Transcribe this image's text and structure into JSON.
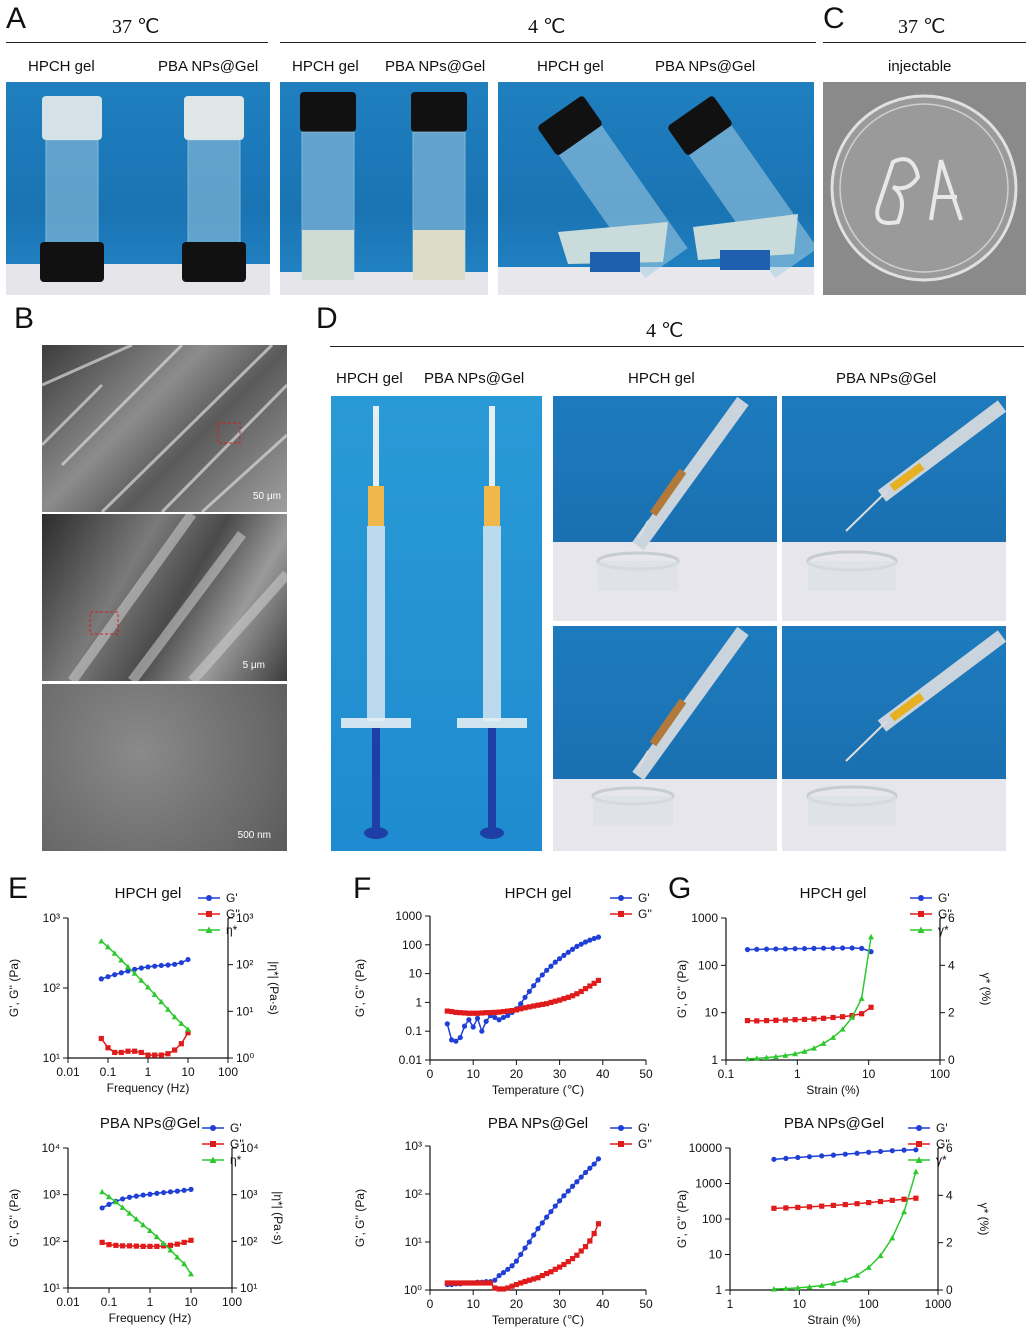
{
  "panels": {
    "A": {
      "letter": "A",
      "temp_left": "37 ℃",
      "temp_right": "4 ℃",
      "labels": [
        "HPCH gel",
        "PBA NPs@Gel",
        "HPCH gel",
        "PBA NPs@Gel",
        "HPCH gel",
        "PBA NPs@Gel"
      ]
    },
    "B": {
      "letter": "B",
      "scale_bars": [
        "50 μm",
        "5 μm",
        "500 nm"
      ]
    },
    "C": {
      "letter": "C",
      "temp": "37 ℃",
      "label": "injectable"
    },
    "D": {
      "letter": "D",
      "temp": "4 ℃",
      "labels": [
        "HPCH gel",
        "PBA NPs@Gel",
        "HPCH gel",
        "PBA NPs@Gel"
      ]
    },
    "E": {
      "letter": "E"
    },
    "F": {
      "letter": "F"
    },
    "G": {
      "letter": "G"
    }
  },
  "colors": {
    "blue_series": "#1f3fd6",
    "red_series": "#e01b1b",
    "green_series": "#2dc82d",
    "photo_blue": "#1f7fbf"
  },
  "chart_data": [
    {
      "id": "E-top",
      "type": "line",
      "title": "HPCH gel",
      "xlabel": "Frequency (Hz)",
      "ylabel": "G', G'' (Pa)",
      "y2label": "|η*| (Pa·s)",
      "xscale": "log",
      "xlim": [
        0.01,
        100
      ],
      "xticks": [
        "0.01",
        "0.1",
        "1",
        "10",
        "100"
      ],
      "yscale": "log",
      "ylim": [
        10,
        1000
      ],
      "yticks": [
        "10¹",
        "10²",
        "10³"
      ],
      "y2lim": [
        1,
        1000
      ],
      "y2ticks": [
        "10⁰",
        "10¹",
        "10²",
        "10³"
      ],
      "legend": "top-right",
      "series": [
        {
          "name": "G'",
          "axis": "y",
          "color": "#1f3fd6",
          "marker": "circle",
          "x": [
            0.068,
            0.1,
            0.147,
            0.215,
            0.316,
            0.464,
            0.681,
            1.0,
            1.47,
            2.15,
            3.16,
            4.64,
            6.81,
            10.0
          ],
          "y": [
            135,
            145,
            155,
            165,
            175,
            185,
            193,
            200,
            205,
            210,
            213,
            218,
            230,
            255
          ]
        },
        {
          "name": "G''",
          "axis": "y",
          "color": "#e01b1b",
          "marker": "square",
          "x": [
            0.068,
            0.1,
            0.147,
            0.215,
            0.316,
            0.464,
            0.681,
            1.0,
            1.47,
            2.15,
            3.16,
            4.64,
            6.81,
            10.0
          ],
          "y": [
            19,
            14,
            12,
            12,
            12.5,
            12.5,
            12,
            11,
            11,
            11,
            11.5,
            13,
            16,
            23
          ]
        },
        {
          "name": "η*",
          "axis": "y2",
          "color": "#2dc82d",
          "marker": "triangle",
          "x": [
            0.068,
            0.1,
            0.147,
            0.215,
            0.316,
            0.464,
            0.681,
            1.0,
            1.47,
            2.15,
            3.16,
            4.64,
            6.81,
            10.0
          ],
          "y": [
            320,
            240,
            175,
            125,
            90,
            65,
            46,
            33,
            23,
            16,
            11,
            7.6,
            5.5,
            4.1
          ]
        }
      ]
    },
    {
      "id": "E-bottom",
      "type": "line",
      "title": "PBA NPs@Gel",
      "xlabel": "Frequency (Hz)",
      "ylabel": "G', G'' (Pa)",
      "y2label": "|η*| (Pa·s)",
      "xscale": "log",
      "xlim": [
        0.01,
        100
      ],
      "xticks": [
        "0.01",
        "0.1",
        "1",
        "10",
        "100"
      ],
      "yscale": "log",
      "ylim": [
        10,
        10000
      ],
      "yticks": [
        "10¹",
        "10²",
        "10³",
        "10⁴"
      ],
      "y2lim": [
        10,
        10000
      ],
      "y2ticks": [
        "10¹",
        "10²",
        "10³",
        "10⁴"
      ],
      "legend": "top-right",
      "series": [
        {
          "name": "G'",
          "axis": "y",
          "color": "#1f3fd6",
          "marker": "circle",
          "x": [
            0.068,
            0.1,
            0.147,
            0.215,
            0.316,
            0.464,
            0.681,
            1.0,
            1.47,
            2.15,
            3.16,
            4.64,
            6.81,
            10.0
          ],
          "y": [
            520,
            620,
            720,
            810,
            880,
            930,
            980,
            1020,
            1070,
            1110,
            1150,
            1190,
            1240,
            1300
          ]
        },
        {
          "name": "G''",
          "axis": "y",
          "color": "#e01b1b",
          "marker": "square",
          "x": [
            0.068,
            0.1,
            0.147,
            0.215,
            0.316,
            0.464,
            0.681,
            1.0,
            1.47,
            2.15,
            3.16,
            4.64,
            6.81,
            10.0
          ],
          "y": [
            95,
            85,
            82,
            80,
            80,
            79,
            78,
            78,
            78,
            80,
            82,
            87,
            95,
            105
          ]
        },
        {
          "name": "η*",
          "axis": "y2",
          "color": "#2dc82d",
          "marker": "triangle",
          "x": [
            0.068,
            0.1,
            0.147,
            0.215,
            0.316,
            0.464,
            0.681,
            1.0,
            1.47,
            2.15,
            3.16,
            4.64,
            6.81,
            10.0
          ],
          "y": [
            1150,
            900,
            700,
            530,
            400,
            300,
            225,
            170,
            125,
            90,
            65,
            46,
            33,
            20
          ]
        }
      ]
    },
    {
      "id": "F-top",
      "type": "line",
      "title": "HPCH gel",
      "xlabel": "Temperature (℃)",
      "ylabel": "G', G'' (Pa)",
      "xscale": "linear",
      "xlim": [
        0,
        50
      ],
      "xticks": [
        "0",
        "10",
        "20",
        "30",
        "40",
        "50"
      ],
      "yscale": "log",
      "ylim": [
        0.01,
        1000
      ],
      "yticks": [
        "0.01",
        "0.1",
        "1",
        "10",
        "100",
        "1000"
      ],
      "legend": "top-right",
      "series": [
        {
          "name": "G'",
          "axis": "y",
          "color": "#1f3fd6",
          "marker": "circle",
          "x": [
            4,
            5,
            6,
            7,
            8,
            9,
            10,
            11,
            12,
            13,
            14,
            15,
            16,
            17,
            18,
            19,
            20,
            21,
            22,
            23,
            24,
            25,
            26,
            27,
            28,
            29,
            30,
            31,
            32,
            33,
            34,
            35,
            36,
            37,
            38,
            39
          ],
          "y": [
            0.18,
            0.05,
            0.045,
            0.06,
            0.15,
            0.25,
            0.14,
            0.28,
            0.1,
            0.22,
            0.35,
            0.3,
            0.25,
            0.3,
            0.35,
            0.45,
            0.6,
            0.9,
            1.5,
            2.4,
            3.8,
            6,
            9,
            13,
            18,
            25,
            33,
            43,
            55,
            70,
            88,
            105,
            125,
            145,
            165,
            185
          ]
        },
        {
          "name": "G''",
          "axis": "y",
          "color": "#e01b1b",
          "marker": "square",
          "x": [
            4,
            5,
            6,
            7,
            8,
            9,
            10,
            11,
            12,
            13,
            14,
            15,
            16,
            17,
            18,
            19,
            20,
            21,
            22,
            23,
            24,
            25,
            26,
            27,
            28,
            29,
            30,
            31,
            32,
            33,
            34,
            35,
            36,
            37,
            38,
            39
          ],
          "y": [
            0.5,
            0.48,
            0.45,
            0.44,
            0.43,
            0.42,
            0.42,
            0.42,
            0.43,
            0.44,
            0.44,
            0.45,
            0.46,
            0.48,
            0.5,
            0.52,
            0.55,
            0.6,
            0.65,
            0.7,
            0.75,
            0.8,
            0.85,
            0.9,
            1.0,
            1.1,
            1.2,
            1.35,
            1.5,
            1.7,
            2.0,
            2.4,
            3.0,
            3.7,
            4.6,
            5.8
          ]
        }
      ]
    },
    {
      "id": "F-bottom",
      "type": "line",
      "title": "PBA NPs@Gel",
      "xlabel": "Temperature (℃)",
      "ylabel": "G', G'' (Pa)",
      "xscale": "linear",
      "xlim": [
        0,
        50
      ],
      "xticks": [
        "0",
        "10",
        "20",
        "30",
        "40",
        "50"
      ],
      "yscale": "log",
      "ylim": [
        1,
        1000
      ],
      "yticks": [
        "10⁰",
        "10¹",
        "10²",
        "10³"
      ],
      "legend": "top-right",
      "series": [
        {
          "name": "G'",
          "axis": "y",
          "color": "#1f3fd6",
          "marker": "circle",
          "x": [
            4,
            5,
            6,
            7,
            8,
            9,
            10,
            11,
            12,
            13,
            14,
            15,
            16,
            17,
            18,
            19,
            20,
            21,
            22,
            23,
            24,
            25,
            26,
            27,
            28,
            29,
            30,
            31,
            32,
            33,
            34,
            35,
            36,
            37,
            38,
            39
          ],
          "y": [
            1.3,
            1.3,
            1.35,
            1.35,
            1.4,
            1.4,
            1.4,
            1.45,
            1.45,
            1.5,
            1.5,
            1.6,
            2.0,
            2.3,
            2.7,
            3.2,
            4.0,
            5.5,
            7.5,
            10,
            14,
            19,
            25,
            33,
            43,
            56,
            72,
            92,
            115,
            145,
            180,
            225,
            280,
            345,
            420,
            540
          ]
        },
        {
          "name": "G''",
          "axis": "y",
          "color": "#e01b1b",
          "marker": "square",
          "x": [
            4,
            5,
            6,
            7,
            8,
            9,
            10,
            11,
            12,
            13,
            14,
            15,
            16,
            17,
            18,
            19,
            20,
            21,
            22,
            23,
            24,
            25,
            26,
            27,
            28,
            29,
            30,
            31,
            32,
            33,
            34,
            35,
            36,
            37,
            38,
            39
          ],
          "y": [
            1.4,
            1.4,
            1.4,
            1.4,
            1.4,
            1.4,
            1.4,
            1.4,
            1.4,
            1.4,
            1.4,
            1.1,
            1.05,
            1.05,
            1.1,
            1.2,
            1.3,
            1.4,
            1.5,
            1.6,
            1.7,
            1.8,
            2.0,
            2.2,
            2.4,
            2.7,
            3.0,
            3.4,
            3.9,
            4.5,
            5.3,
            6.5,
            8.0,
            10.5,
            15,
            24
          ]
        }
      ]
    },
    {
      "id": "G-top",
      "type": "line",
      "title": "HPCH gel",
      "xlabel": "Strain (%)",
      "ylabel": "G', G'' (Pa)",
      "y2label": "γ* (%)",
      "xscale": "log",
      "xlim": [
        0.1,
        100
      ],
      "xticks": [
        "0.1",
        "1",
        "10",
        "100"
      ],
      "yscale": "log",
      "ylim": [
        1,
        1000
      ],
      "yticks": [
        "1",
        "10",
        "100",
        "1000"
      ],
      "y2lim": [
        0,
        6
      ],
      "y2ticks": [
        "0",
        "2",
        "4",
        "6"
      ],
      "legend": "top-right",
      "series": [
        {
          "name": "G'",
          "axis": "y",
          "color": "#1f3fd6",
          "marker": "circle",
          "x": [
            0.2,
            0.27,
            0.37,
            0.5,
            0.68,
            0.93,
            1.26,
            1.71,
            2.33,
            3.17,
            4.31,
            5.86,
            7.97,
            10.8
          ],
          "y": [
            215,
            218,
            220,
            222,
            223,
            225,
            226,
            228,
            230,
            231,
            232,
            232,
            228,
            195
          ]
        },
        {
          "name": "G''",
          "axis": "y",
          "color": "#e01b1b",
          "marker": "square",
          "x": [
            0.2,
            0.27,
            0.37,
            0.5,
            0.68,
            0.93,
            1.26,
            1.71,
            2.33,
            3.17,
            4.31,
            5.86,
            7.97,
            10.8
          ],
          "y": [
            6.8,
            6.7,
            6.8,
            6.9,
            7.0,
            7.1,
            7.2,
            7.4,
            7.6,
            7.9,
            8.2,
            8.7,
            9.5,
            13
          ]
        },
        {
          "name": "γ*",
          "axis": "y2",
          "color": "#2dc82d",
          "marker": "triangle",
          "x": [
            0.2,
            0.27,
            0.37,
            0.5,
            0.68,
            0.93,
            1.26,
            1.71,
            2.33,
            3.17,
            4.31,
            5.86,
            7.97,
            10.8
          ],
          "y": [
            0.05,
            0.07,
            0.1,
            0.14,
            0.19,
            0.26,
            0.36,
            0.5,
            0.7,
            0.95,
            1.3,
            1.8,
            2.6,
            5.2
          ]
        }
      ]
    },
    {
      "id": "G-bottom",
      "type": "line",
      "title": "PBA NPs@Gel",
      "xlabel": "Strain (%)",
      "ylabel": "G', G'' (Pa)",
      "y2label": "γ* (%)",
      "xscale": "log",
      "xlim": [
        1,
        1000
      ],
      "xticks": [
        "1",
        "10",
        "100",
        "1000"
      ],
      "yscale": "log",
      "ylim": [
        1,
        10000
      ],
      "yticks": [
        "1",
        "10",
        "100",
        "1000",
        "10000"
      ],
      "y2lim": [
        0,
        6
      ],
      "y2ticks": [
        "0",
        "2",
        "4",
        "6"
      ],
      "legend": "top-right",
      "series": [
        {
          "name": "G'",
          "axis": "y",
          "color": "#1f3fd6",
          "marker": "circle",
          "x": [
            4.3,
            6.4,
            9.5,
            14,
            21,
            31,
            46,
            68,
            100,
            148,
            219,
            324,
            480
          ],
          "y": [
            4800,
            5100,
            5400,
            5700,
            6000,
            6300,
            6700,
            7100,
            7600,
            8000,
            8400,
            8700,
            8900
          ]
        },
        {
          "name": "G''",
          "axis": "y",
          "color": "#e01b1b",
          "marker": "square",
          "x": [
            4.3,
            6.4,
            9.5,
            14,
            21,
            31,
            46,
            68,
            100,
            148,
            219,
            324,
            480
          ],
          "y": [
            200,
            205,
            212,
            220,
            230,
            242,
            255,
            270,
            290,
            310,
            335,
            360,
            385
          ]
        },
        {
          "name": "γ*",
          "axis": "y2",
          "color": "#2dc82d",
          "marker": "triangle",
          "x": [
            4.3,
            6.4,
            9.5,
            14,
            21,
            31,
            46,
            68,
            100,
            148,
            219,
            324,
            480
          ],
          "y": [
            0.04,
            0.06,
            0.09,
            0.13,
            0.19,
            0.28,
            0.42,
            0.62,
            0.95,
            1.45,
            2.2,
            3.3,
            5.0
          ]
        }
      ]
    }
  ]
}
